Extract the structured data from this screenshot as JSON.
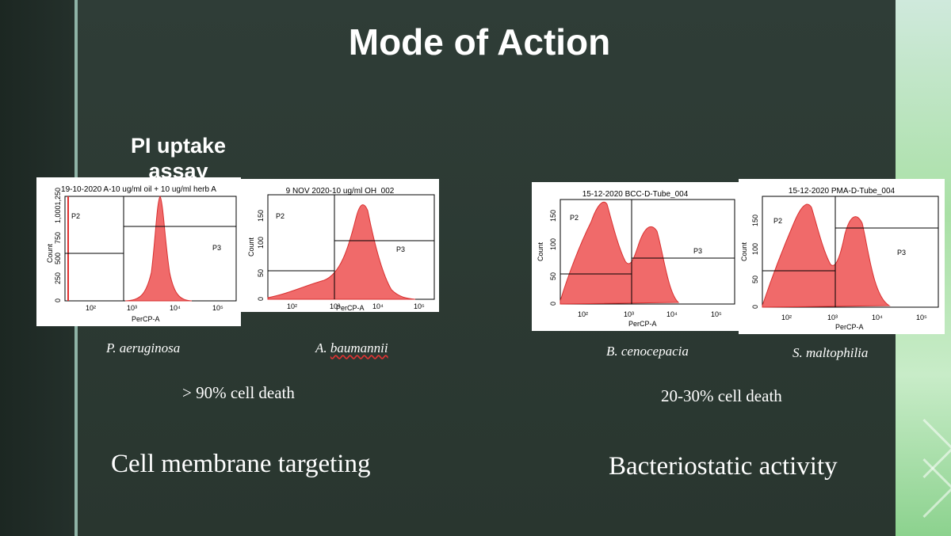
{
  "slide": {
    "title": "Mode of Action",
    "pi_label": "PI uptake assay",
    "colors": {
      "background": "#2b3a33",
      "histogram_fill": "#f06a6a",
      "histogram_stroke": "#d83030",
      "accent_green": "#a9e0a5"
    }
  },
  "plots": [
    {
      "title": "19-10-2020 A-10 ug/ml oil + 10 ug/ml herb A",
      "gate_left": "P2",
      "gate_right": "P3",
      "x_label": "PerCP-A",
      "y_label": "Count",
      "y_ticks": [
        "0",
        "250",
        "500",
        "750",
        "1,0001,250"
      ],
      "x_ticks": [
        "10²",
        "10³",
        "10⁴",
        "10⁵"
      ]
    },
    {
      "title": "9 NOV 2020-10 ug/ml OH_002",
      "gate_left": "P2",
      "gate_right": "P3",
      "x_label": "PerCP-A",
      "y_label": "Count",
      "y_ticks": [
        "0",
        "50",
        "100",
        "150"
      ],
      "x_ticks": [
        "10²",
        "10³",
        "10⁴",
        "10⁵"
      ]
    },
    {
      "title": "15-12-2020 BCC-D-Tube_004",
      "gate_left": "P2",
      "gate_right": "P3",
      "x_label": "PerCP-A",
      "y_label": "Count",
      "y_ticks": [
        "0",
        "50",
        "100",
        "150"
      ],
      "x_ticks": [
        "10²",
        "10³",
        "10⁴",
        "10⁵"
      ]
    },
    {
      "title": "15-12-2020 PMA-D-Tube_004",
      "gate_left": "P2",
      "gate_right": "P3",
      "x_label": "PerCP-A",
      "y_label": "Count",
      "y_ticks": [
        "0",
        "50",
        "100",
        "150"
      ],
      "x_ticks": [
        "10²",
        "10³",
        "10⁴",
        "10⁵"
      ]
    }
  ],
  "captions": {
    "p_aeruginosa": "P. aeruginosa",
    "a_prefix": "A. ",
    "a_name": "baumannii",
    "b_cenocepacia": "B. cenocepacia",
    "s_maltophilia": "S. maltophilia"
  },
  "stats": {
    "left": "> 90% cell death",
    "right": "20-30% cell death"
  },
  "headings": {
    "left": "Cell membrane targeting",
    "right": "Bacteriostatic activity"
  }
}
